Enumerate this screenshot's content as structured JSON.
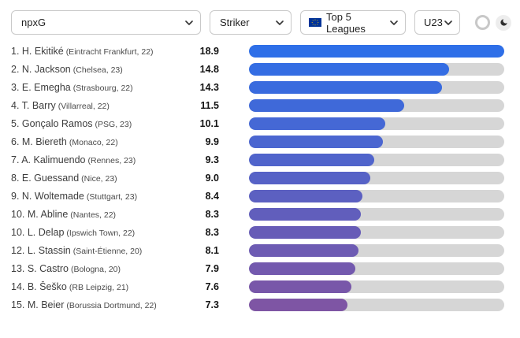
{
  "header": {
    "filters": {
      "metric": {
        "value": "npxG"
      },
      "position": {
        "value": "Striker"
      },
      "league": {
        "value": "Top 5 Leagues",
        "flag": "eu-flag"
      },
      "age": {
        "value": "U23"
      }
    },
    "theme_toggles": {
      "light": "ring",
      "dark": "moon"
    }
  },
  "colors": {
    "bar_gradient_start": "#2e6fe8",
    "bar_gradient_end": "#7e55a4",
    "track": "#d6d6d6"
  },
  "chart_data": {
    "type": "bar",
    "orientation": "horizontal",
    "metric": "npxG",
    "max_value": 18.9,
    "players": [
      {
        "label": "1. H. Ekitiké",
        "detail": "(Eintracht Frankfurt, 22)",
        "value": "18.9"
      },
      {
        "label": "2. N. Jackson",
        "detail": "(Chelsea, 23)",
        "value": "14.8"
      },
      {
        "label": "3. E. Emegha",
        "detail": "(Strasbourg, 22)",
        "value": "14.3"
      },
      {
        "label": "4. T. Barry",
        "detail": "(Villarreal, 22)",
        "value": "11.5"
      },
      {
        "label": "5. Gonçalo Ramos",
        "detail": "(PSG, 23)",
        "value": "10.1"
      },
      {
        "label": "6. M. Biereth",
        "detail": "(Monaco, 22)",
        "value": "9.9"
      },
      {
        "label": "7. A. Kalimuendo",
        "detail": "(Rennes, 23)",
        "value": "9.3"
      },
      {
        "label": "8. E. Guessand",
        "detail": "(Nice, 23)",
        "value": "9.0"
      },
      {
        "label": "9. N. Woltemade",
        "detail": "(Stuttgart, 23)",
        "value": "8.4"
      },
      {
        "label": "10. M. Abline",
        "detail": "(Nantes, 22)",
        "value": "8.3"
      },
      {
        "label": "10. L. Delap",
        "detail": "(Ipswich Town, 22)",
        "value": "8.3"
      },
      {
        "label": "12. L. Stassin",
        "detail": "(Saint-Étienne, 20)",
        "value": "8.1"
      },
      {
        "label": "13. S. Castro",
        "detail": "(Bologna, 20)",
        "value": "7.9"
      },
      {
        "label": "14. B. Šeško",
        "detail": "(RB Leipzig, 21)",
        "value": "7.6"
      },
      {
        "label": "15. M. Beier",
        "detail": "(Borussia Dortmund, 22)",
        "value": "7.3"
      }
    ]
  }
}
